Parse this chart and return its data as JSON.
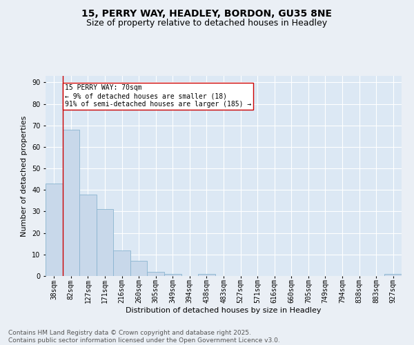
{
  "title": "15, PERRY WAY, HEADLEY, BORDON, GU35 8NE",
  "subtitle": "Size of property relative to detached houses in Headley",
  "xlabel": "Distribution of detached houses by size in Headley",
  "ylabel": "Number of detached properties",
  "bar_labels": [
    "38sqm",
    "82sqm",
    "127sqm",
    "171sqm",
    "216sqm",
    "260sqm",
    "305sqm",
    "349sqm",
    "394sqm",
    "438sqm",
    "483sqm",
    "527sqm",
    "571sqm",
    "616sqm",
    "660sqm",
    "705sqm",
    "749sqm",
    "794sqm",
    "838sqm",
    "883sqm",
    "927sqm"
  ],
  "bar_values": [
    43,
    68,
    38,
    31,
    12,
    7,
    2,
    1,
    0,
    1,
    0,
    0,
    0,
    0,
    0,
    0,
    0,
    0,
    0,
    0,
    1
  ],
  "bar_color": "#c8d8ea",
  "bar_edge_color": "#8ab4d0",
  "property_size": "70sqm",
  "annotation_text_line1": "15 PERRY WAY: 70sqm",
  "annotation_text_line2": "← 9% of detached houses are smaller (18)",
  "annotation_text_line3": "91% of semi-detached houses are larger (185) →",
  "annotation_box_color": "#ffffff",
  "annotation_box_edge_color": "#cc0000",
  "red_line_color": "#cc0000",
  "ylim": [
    0,
    93
  ],
  "yticks": [
    0,
    10,
    20,
    30,
    40,
    50,
    60,
    70,
    80,
    90
  ],
  "bg_color": "#eaeff5",
  "plot_bg_color": "#dce8f4",
  "grid_color": "#ffffff",
  "footer_line1": "Contains HM Land Registry data © Crown copyright and database right 2025.",
  "footer_line2": "Contains public sector information licensed under the Open Government Licence v3.0.",
  "title_fontsize": 10,
  "subtitle_fontsize": 9,
  "axis_label_fontsize": 8,
  "tick_fontsize": 7,
  "annotation_fontsize": 7,
  "footer_fontsize": 6.5
}
